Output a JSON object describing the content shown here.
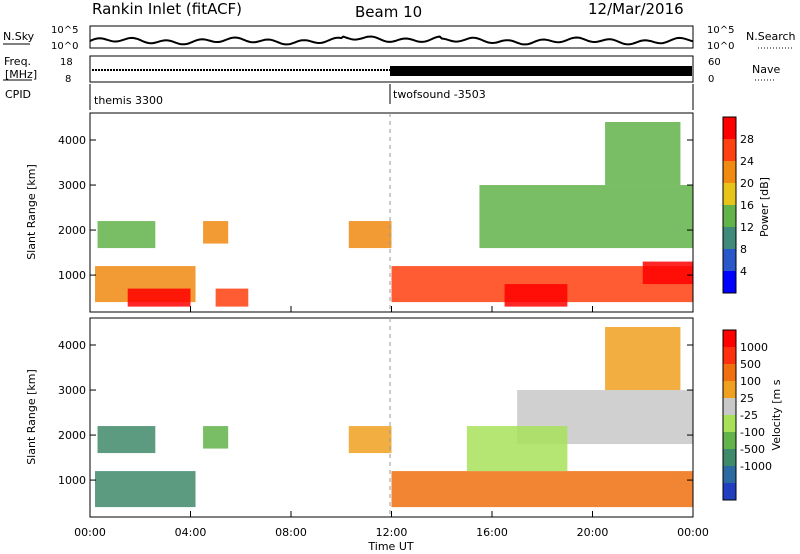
{
  "header": {
    "station": "Rankin Inlet (fitACF)",
    "beam": "Beam 10",
    "date": "12/Mar/2016"
  },
  "noise_panel": {
    "left_label": "N.Sky",
    "right_label": "N.Search",
    "ticks": [
      "10^5",
      "10^0"
    ]
  },
  "freq_panel": {
    "left_label_1": "Freq.",
    "left_label_2": "[MHz]",
    "right_label": "Nave",
    "left_ticks": [
      "18",
      "8"
    ],
    "right_ticks": [
      "60",
      "0"
    ]
  },
  "cpid_panel": {
    "label": "CPID",
    "modes": [
      {
        "name": "themis 3300",
        "start_hour": 0
      },
      {
        "name": "twofsound -3503",
        "start_hour": 12
      }
    ]
  },
  "time_axis": {
    "label": "Time UT",
    "ticks": [
      "00:00",
      "04:00",
      "08:00",
      "12:00",
      "16:00",
      "20:00",
      "00:00"
    ],
    "tick_hours": [
      0,
      4,
      8,
      12,
      16,
      20,
      24
    ]
  },
  "chart_data": [
    {
      "type": "heatmap",
      "name": "power",
      "ylabel": "Slant Range [km]",
      "ylim": [
        180,
        4600
      ],
      "y_ticks": [
        "1000",
        "2000",
        "3000",
        "4000"
      ],
      "y_tick_values": [
        1000,
        2000,
        3000,
        4000
      ],
      "colorbar_label": "Power [dB]",
      "colorbar_ticks": [
        "4",
        "8",
        "12",
        "16",
        "20",
        "24",
        "28"
      ],
      "colorbar_colors": [
        "#0000ff",
        "#2a58c8",
        "#3f8a7a",
        "#62b34a",
        "#e8c41a",
        "#f08a10",
        "#ff4010",
        "#ff0000"
      ],
      "regions": [
        {
          "t0": 0.2,
          "t1": 4.2,
          "r0": 400,
          "r1": 1200,
          "level": 5
        },
        {
          "t0": 1.5,
          "t1": 4.0,
          "r0": 300,
          "r1": 700,
          "level": 7
        },
        {
          "t0": 0.3,
          "t1": 2.6,
          "r0": 1600,
          "r1": 2200,
          "level": 3
        },
        {
          "t0": 4.5,
          "t1": 5.5,
          "r0": 1700,
          "r1": 2200,
          "level": 5
        },
        {
          "t0": 5.0,
          "t1": 6.3,
          "r0": 300,
          "r1": 700,
          "level": 6
        },
        {
          "t0": 10.3,
          "t1": 12.0,
          "r0": 1600,
          "r1": 2200,
          "level": 5
        },
        {
          "t0": 12.0,
          "t1": 24.0,
          "r0": 400,
          "r1": 1200,
          "level": 6
        },
        {
          "t0": 16.5,
          "t1": 19.0,
          "r0": 300,
          "r1": 800,
          "level": 7
        },
        {
          "t0": 15.5,
          "t1": 24.0,
          "r0": 1600,
          "r1": 3000,
          "level": 3
        },
        {
          "t0": 20.5,
          "t1": 23.5,
          "r0": 3000,
          "r1": 4400,
          "level": 3
        },
        {
          "t0": 22.0,
          "t1": 24.0,
          "r0": 800,
          "r1": 1300,
          "level": 7
        }
      ]
    },
    {
      "type": "heatmap",
      "name": "velocity",
      "ylabel": "Slant Range [km]",
      "ylim": [
        180,
        4600
      ],
      "y_ticks": [
        "1000",
        "2000",
        "3000",
        "4000"
      ],
      "y_tick_values": [
        1000,
        2000,
        3000,
        4000
      ],
      "colorbar_label": "Velocity [m s",
      "colorbar_ticks": [
        "1000",
        "500",
        "100",
        "25",
        "-25",
        "-100",
        "-500",
        "-1000"
      ],
      "colorbar_colors": [
        "#1f3fc0",
        "#2a6aa0",
        "#3f8a6a",
        "#62b34a",
        "#a8e05a",
        "#c8c8c8",
        "#f0a020",
        "#f07010",
        "#ff3010",
        "#ff0000"
      ],
      "regions": [
        {
          "t0": 0.2,
          "t1": 4.2,
          "r0": 400,
          "r1": 1200,
          "level": 2
        },
        {
          "t0": 0.3,
          "t1": 2.6,
          "r0": 1600,
          "r1": 2200,
          "level": 2
        },
        {
          "t0": 4.5,
          "t1": 5.5,
          "r0": 1700,
          "r1": 2200,
          "level": 3
        },
        {
          "t0": 10.3,
          "t1": 12.0,
          "r0": 1600,
          "r1": 2200,
          "level": 6
        },
        {
          "t0": 12.0,
          "t1": 24.0,
          "r0": 400,
          "r1": 1200,
          "level": 7
        },
        {
          "t0": 17.0,
          "t1": 24.0,
          "r0": 1800,
          "r1": 3000,
          "level": 5
        },
        {
          "t0": 15.0,
          "t1": 19.0,
          "r0": 1200,
          "r1": 2200,
          "level": 4
        },
        {
          "t0": 20.5,
          "t1": 23.5,
          "r0": 3000,
          "r1": 4400,
          "level": 6
        }
      ]
    }
  ]
}
